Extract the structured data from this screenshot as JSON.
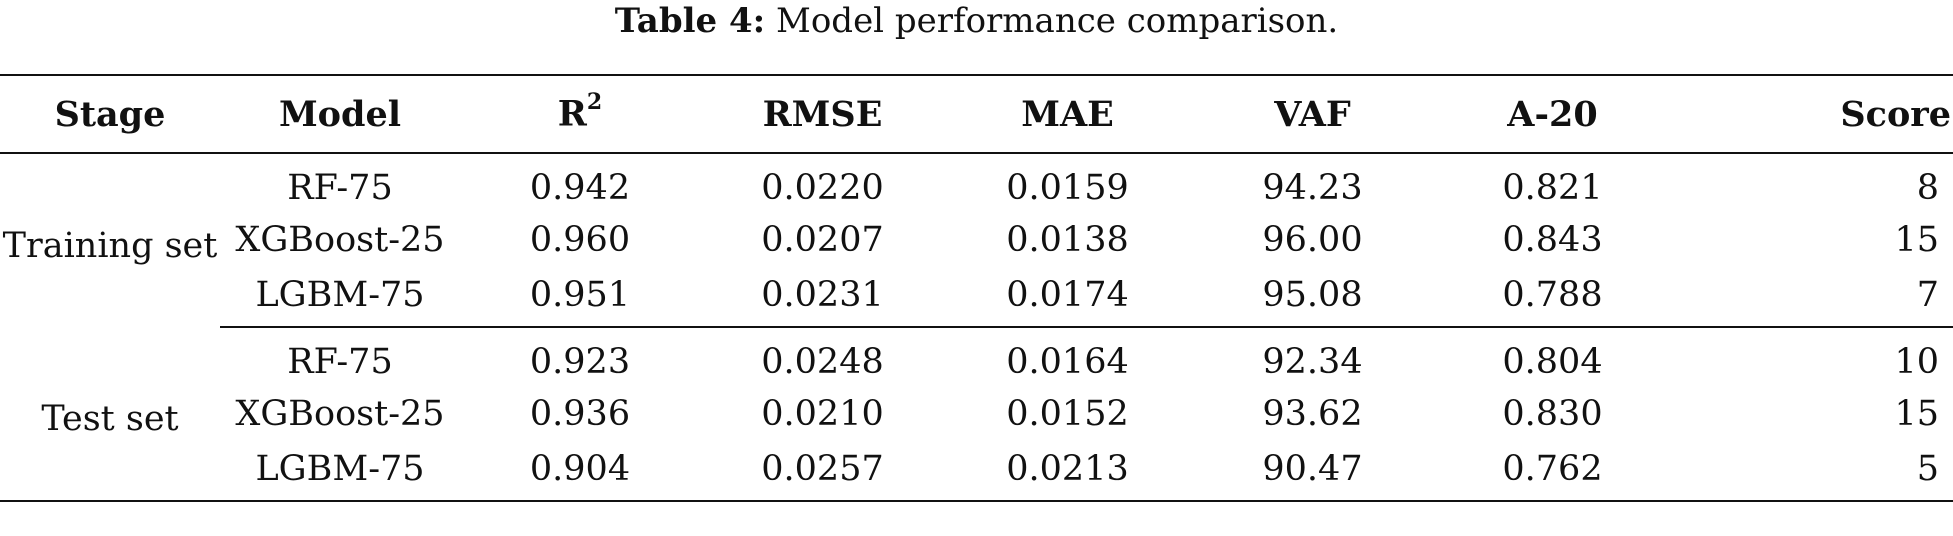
{
  "caption": {
    "label": "Table 4:",
    "text": "Model performance comparison."
  },
  "table": {
    "headers": {
      "stage": "Stage",
      "model": "Model",
      "r2_base": "R",
      "r2_sup": "2",
      "rmse": "RMSE",
      "mae": "MAE",
      "vaf": "VAF",
      "a20": "A-20",
      "score": "Score"
    },
    "groups": [
      {
        "stage": "Training set",
        "rows": [
          {
            "model": "RF-75",
            "r2": "0.942",
            "rmse": "0.0220",
            "mae": "0.0159",
            "vaf": "94.23",
            "a20": "0.821",
            "score": "8"
          },
          {
            "model": "XGBoost-25",
            "r2": "0.960",
            "rmse": "0.0207",
            "mae": "0.0138",
            "vaf": "96.00",
            "a20": "0.843",
            "score": "15"
          },
          {
            "model": "LGBM-75",
            "r2": "0.951",
            "rmse": "0.0231",
            "mae": "0.0174",
            "vaf": "95.08",
            "a20": "0.788",
            "score": "7"
          }
        ]
      },
      {
        "stage": "Test set",
        "rows": [
          {
            "model": "RF-75",
            "r2": "0.923",
            "rmse": "0.0248",
            "mae": "0.0164",
            "vaf": "92.34",
            "a20": "0.804",
            "score": "10"
          },
          {
            "model": "XGBoost-25",
            "r2": "0.936",
            "rmse": "0.0210",
            "mae": "0.0152",
            "vaf": "93.62",
            "a20": "0.830",
            "score": "15"
          },
          {
            "model": "LGBM-75",
            "r2": "0.904",
            "rmse": "0.0257",
            "mae": "0.0213",
            "vaf": "90.47",
            "a20": "0.762",
            "score": "5"
          }
        ]
      }
    ]
  }
}
